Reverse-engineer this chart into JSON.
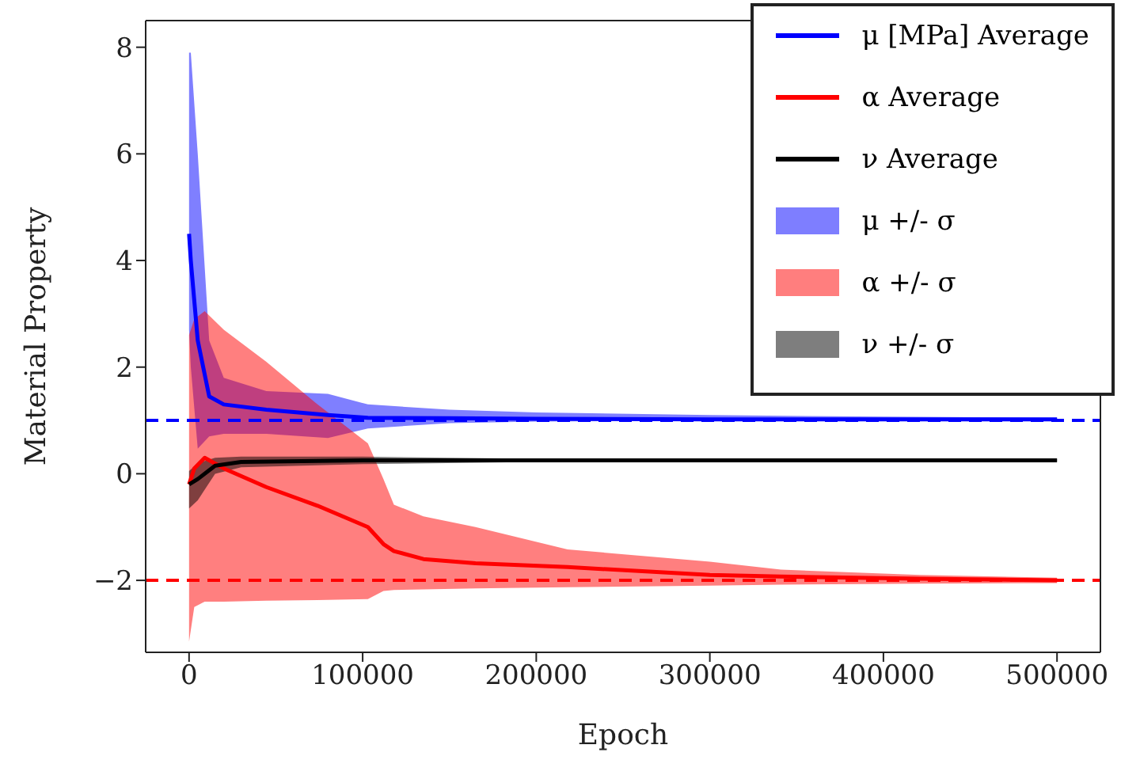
{
  "chart_data": {
    "type": "line",
    "xlabel": "Epoch",
    "ylabel": "Material Property",
    "xlim": [
      -25000,
      525000
    ],
    "ylim": [
      -3.35,
      8.5
    ],
    "xticks": [
      0,
      100000,
      200000,
      300000,
      400000,
      500000
    ],
    "yticks": [
      -2,
      0,
      2,
      4,
      6,
      8
    ],
    "grid": false,
    "legend": "top right",
    "marker": "none",
    "line_style": "solid",
    "annotations": [
      "μ +/- σ",
      "α +/- σ",
      "ν +/- σ"
    ],
    "series": [
      {
        "name": "μ [MPa] Average",
        "color": "#0000ff",
        "x": [
          0,
          1000,
          5000,
          11600,
          20000,
          44500,
          80000,
          103000,
          150000,
          200000,
          300000,
          400000,
          500000
        ],
        "values": [
          4.5,
          4.0,
          2.5,
          1.45,
          1.3,
          1.2,
          1.1,
          1.05,
          1.04,
          1.03,
          1.02,
          1.02,
          1.02
        ],
        "lower": [
          2.7,
          2.0,
          0.47,
          0.7,
          0.75,
          0.75,
          0.67,
          0.85,
          0.95,
          0.98,
          1.0,
          1.0,
          1.0
        ],
        "upper": [
          7.9,
          7.9,
          6.0,
          2.5,
          1.8,
          1.55,
          1.5,
          1.3,
          1.2,
          1.15,
          1.1,
          1.07,
          1.05
        ]
      },
      {
        "name": "α Average",
        "color": "#ff0000",
        "x": [
          0,
          3000,
          9000,
          20000,
          44500,
          74000,
          103000,
          112000,
          118000,
          135000,
          165000,
          218000,
          300000,
          341000,
          421000,
          500000
        ],
        "values": [
          -0.2,
          0.1,
          0.3,
          0.1,
          -0.25,
          -0.6,
          -1.0,
          -1.32,
          -1.45,
          -1.6,
          -1.68,
          -1.75,
          -1.9,
          -1.93,
          -1.97,
          -2.0
        ],
        "lower": [
          -3.15,
          -2.5,
          -2.4,
          -2.4,
          -2.38,
          -2.37,
          -2.35,
          -2.2,
          -2.18,
          -2.17,
          -2.15,
          -2.13,
          -2.1,
          -2.08,
          -2.06,
          -2.05
        ],
        "upper": [
          2.6,
          2.9,
          3.05,
          2.7,
          2.1,
          1.3,
          0.57,
          -0.1,
          -0.58,
          -0.8,
          -1.0,
          -1.42,
          -1.65,
          -1.8,
          -1.9,
          -1.95
        ]
      },
      {
        "name": "ν Average",
        "color": "#000000",
        "x": [
          0,
          5000,
          15000,
          30000,
          100000,
          200000,
          300000,
          500000
        ],
        "values": [
          -0.2,
          -0.1,
          0.15,
          0.22,
          0.25,
          0.25,
          0.25,
          0.25
        ],
        "lower": [
          -0.65,
          -0.5,
          0.0,
          0.12,
          0.18,
          0.22,
          0.23,
          0.24
        ],
        "upper": [
          0.05,
          0.2,
          0.3,
          0.32,
          0.32,
          0.28,
          0.27,
          0.27
        ]
      }
    ],
    "ref_lines": [
      {
        "axis": "y",
        "value": 1,
        "color": "#0000ff",
        "line_style": "dashed"
      },
      {
        "axis": "y",
        "value": -2,
        "color": "#ff0000",
        "line_style": "dashed"
      }
    ]
  }
}
